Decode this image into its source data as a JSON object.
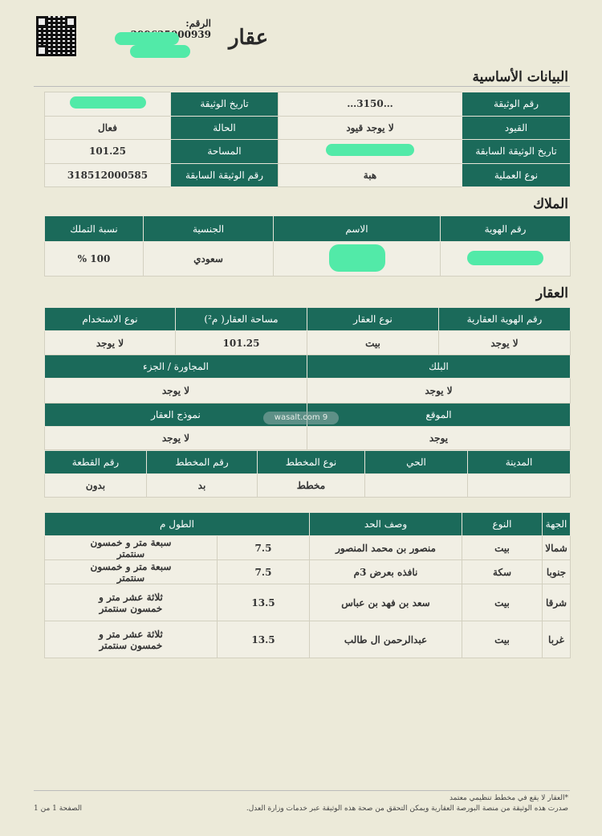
{
  "header": {
    "doc_number_label": "الرقم:",
    "doc_number": "299625000939",
    "logo": "عقار"
  },
  "basic": {
    "title": "البيانات الأساسية",
    "rows": [
      {
        "l1": "رقم الوثيقة",
        "v1": "…3150…",
        "l2": "تاريخ الوثيقة",
        "v2": ""
      },
      {
        "l1": "القيود",
        "v1": "لا يوجد قيود",
        "l2": "الحالة",
        "v2": "فعال"
      },
      {
        "l1": "تاريخ الوثيقة السابقة",
        "v1": "",
        "l2": "المساحة",
        "v2": "101.25"
      },
      {
        "l1": "نوع العملية",
        "v1": "هبة",
        "l2": "رقم الوثيقة السابقة",
        "v2": "318512000585"
      }
    ]
  },
  "owners": {
    "title": "الملاك",
    "headers": [
      "رقم الهوية",
      "الاسم",
      "الجنسية",
      "نسبة التملك"
    ],
    "row": [
      "",
      "",
      "سعودي",
      "100 %"
    ]
  },
  "property": {
    "title": "العقار",
    "h1": [
      "رقم الهوية العقارية",
      "نوع العقار",
      "مساحة العقار( م²)",
      "نوع الاستخدام"
    ],
    "r1": [
      "لا يوجد",
      "بيت",
      "101.25",
      "لا يوجد"
    ],
    "h2": [
      "البلك",
      "المجاورة / الجزء"
    ],
    "r2": [
      "لا يوجد",
      "لا يوجد"
    ],
    "h3": [
      "الموقع",
      "نموذج العقار"
    ],
    "r3": [
      "يوجد",
      "لا يوجد"
    ],
    "h4": [
      "المدينة",
      "الحي",
      "نوع المخطط",
      "رقم المخطط",
      "رقم القطعة"
    ],
    "r4": [
      "",
      "",
      "مخطط",
      "بد",
      "بدون"
    ],
    "watermark": "wasalt.com"
  },
  "bounds": {
    "headers": [
      "الجهة",
      "النوع",
      "وصف الحد",
      "الطول م"
    ],
    "rows": [
      [
        "شمالا",
        "بيت",
        "منصور بن محمد المنصور",
        "7.5",
        "سبعة متر و خمسون سنتمتر"
      ],
      [
        "جنوبا",
        "سكة",
        "نافذه بعرض 3م",
        "7.5",
        "سبعة متر و خمسون سنتمتر"
      ],
      [
        "شرقا",
        "بيت",
        "سعد بن فهد بن عباس",
        "13.5",
        "ثلاثة عشر متر و خمسون سنتمتر"
      ],
      [
        "غربا",
        "بيت",
        "عبدالرحمن ال طالب",
        "13.5",
        "ثلاثة عشر متر و خمسون سنتمتر"
      ]
    ]
  },
  "footer": {
    "note": "*العقار لا يقع في مخطط تنظيمي معتمد",
    "issued": "صدرت هذه الوثيقة من منصة البورصة العقارية ويمكن التحقق من صحة هذه الوثيقة عبر خدمات وزارة العدل.",
    "page": "الصفحة 1 من 1"
  },
  "colors": {
    "header_green": "#1b6a5a",
    "redaction": "#52eaa8",
    "paper": "#ecead9"
  }
}
